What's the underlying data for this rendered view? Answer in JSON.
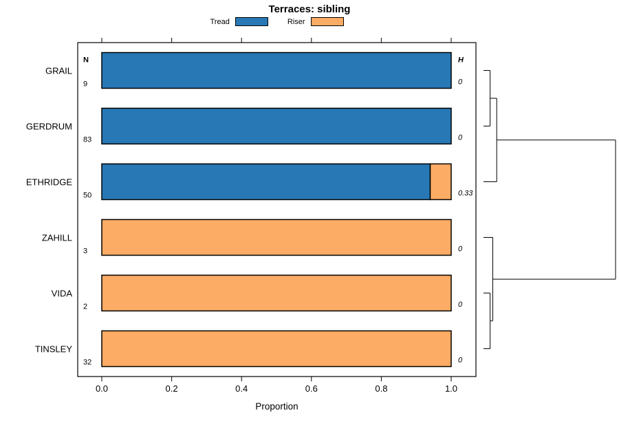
{
  "chart_data": {
    "type": "bar",
    "orientation": "horizontal",
    "stacked": true,
    "title": "Terraces: sibling",
    "xlabel": "Proportion",
    "xlim": [
      0,
      1
    ],
    "x_ticks": [
      0.0,
      0.2,
      0.4,
      0.6,
      0.8,
      1.0
    ],
    "x_tick_labels": [
      "0.0",
      "0.2",
      "0.4",
      "0.6",
      "0.8",
      "1.0"
    ],
    "categories": [
      "GRAIL",
      "GERDRUM",
      "ETHRIDGE",
      "ZAHILL",
      "VIDA",
      "TINSLEY"
    ],
    "series": [
      {
        "name": "Tread",
        "color": "#2878b5",
        "values": [
          1.0,
          1.0,
          0.94,
          0,
          0,
          0
        ]
      },
      {
        "name": "Riser",
        "color": "#fcac64",
        "values": [
          0,
          0,
          0.06,
          1.0,
          1.0,
          1.0
        ]
      }
    ],
    "n_column": {
      "header": "N",
      "values": [
        "9",
        "83",
        "50",
        "3",
        "2",
        "32"
      ]
    },
    "h_column": {
      "header": "H",
      "values": [
        "0",
        "0",
        "0.33",
        "0",
        "0",
        "0"
      ]
    },
    "legend_position": "top-center",
    "grid": false,
    "dendrogram": {
      "leaf_order": [
        "GRAIL",
        "GERDRUM",
        "ETHRIDGE",
        "ZAHILL",
        "VIDA",
        "TINSLEY"
      ],
      "merges": [
        {
          "id": "m0",
          "children": [
            "GRAIL",
            "GERDRUM"
          ],
          "height": 0.05
        },
        {
          "id": "m1",
          "children": [
            "m0",
            "ETHRIDGE"
          ],
          "height": 0.1
        },
        {
          "id": "m2",
          "children": [
            "VIDA",
            "TINSLEY"
          ],
          "height": 0.05
        },
        {
          "id": "m3",
          "children": [
            "ZAHILL",
            "m2"
          ],
          "height": 0.07
        },
        {
          "id": "m4",
          "children": [
            "m1",
            "m3"
          ],
          "height": 1.0
        }
      ]
    }
  }
}
